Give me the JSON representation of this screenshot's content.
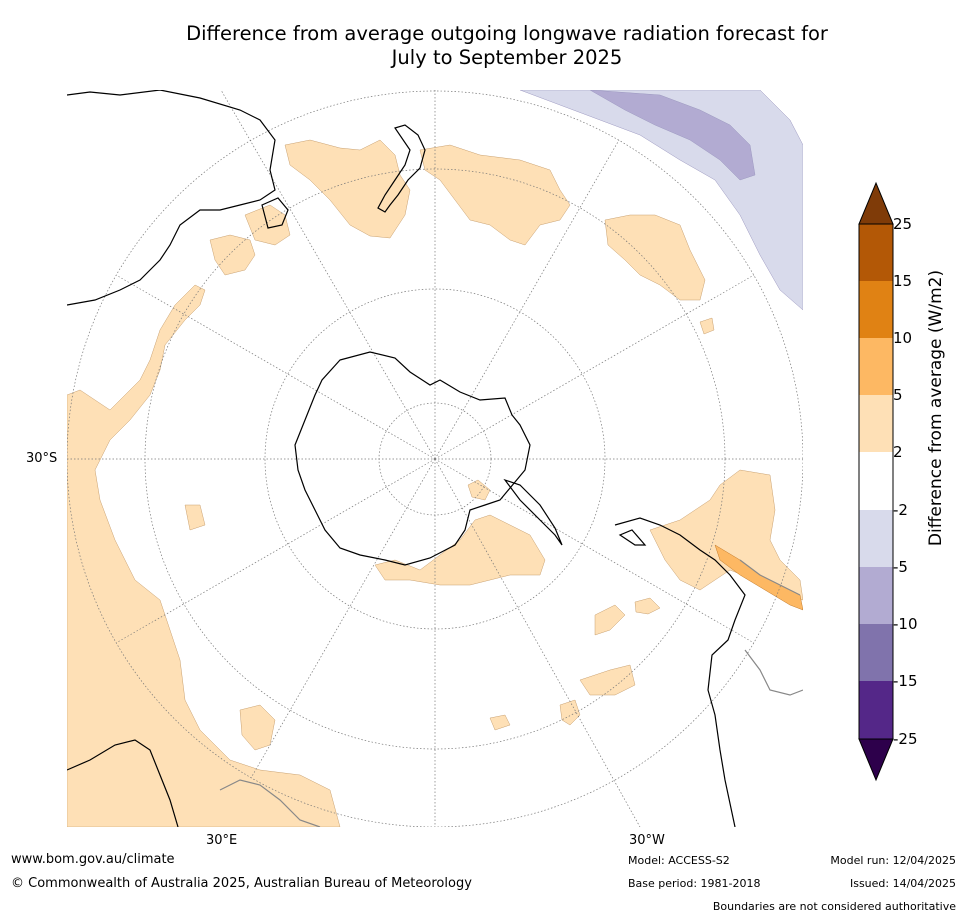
{
  "title": {
    "line1": "Difference from average outgoing longwave radiation forecast for",
    "line2": "July to September 2025"
  },
  "map": {
    "projection": "south polar stereographic",
    "lat_labels": [
      "30°S"
    ],
    "lon_labels": [
      "30°E",
      "30°W"
    ],
    "ocean_color": "#ffffff",
    "land_outline_color": "#000000",
    "graticule": "dotted grey"
  },
  "colorbar": {
    "title": "Difference from average (W/m2)",
    "ticks": [
      "25",
      "15",
      "10",
      "5",
      "2",
      "-2",
      "-5",
      "-10",
      "-15",
      "-25"
    ],
    "levels": [
      {
        "range": ">25",
        "color": "#7f3b08"
      },
      {
        "range": "15 to 25",
        "color": "#b35806"
      },
      {
        "range": "10 to 15",
        "color": "#e08214"
      },
      {
        "range": "5 to 10",
        "color": "#fdb863"
      },
      {
        "range": "2 to 5",
        "color": "#fee0b6"
      },
      {
        "range": "-2 to 2",
        "color": "#ffffff"
      },
      {
        "range": "-5 to -2",
        "color": "#d8daeb"
      },
      {
        "range": "-10 to -5",
        "color": "#b2abd2"
      },
      {
        "range": "-15 to -10",
        "color": "#8073ac"
      },
      {
        "range": "-25 to -15",
        "color": "#542788"
      },
      {
        "range": "<-25",
        "color": "#2d004b"
      }
    ]
  },
  "footer": {
    "url": "www.bom.gov.au/climate",
    "copyright": "© Commonwealth of Australia 2025, Australian Bureau of Meteorology",
    "model": "Model: ACCESS-S2",
    "base_period": "Base period: 1981-2018",
    "model_run": "Model run: 12/04/2025",
    "issued": "Issued: 14/04/2025",
    "disclaimer": "Boundaries are not considered authoritative"
  }
}
